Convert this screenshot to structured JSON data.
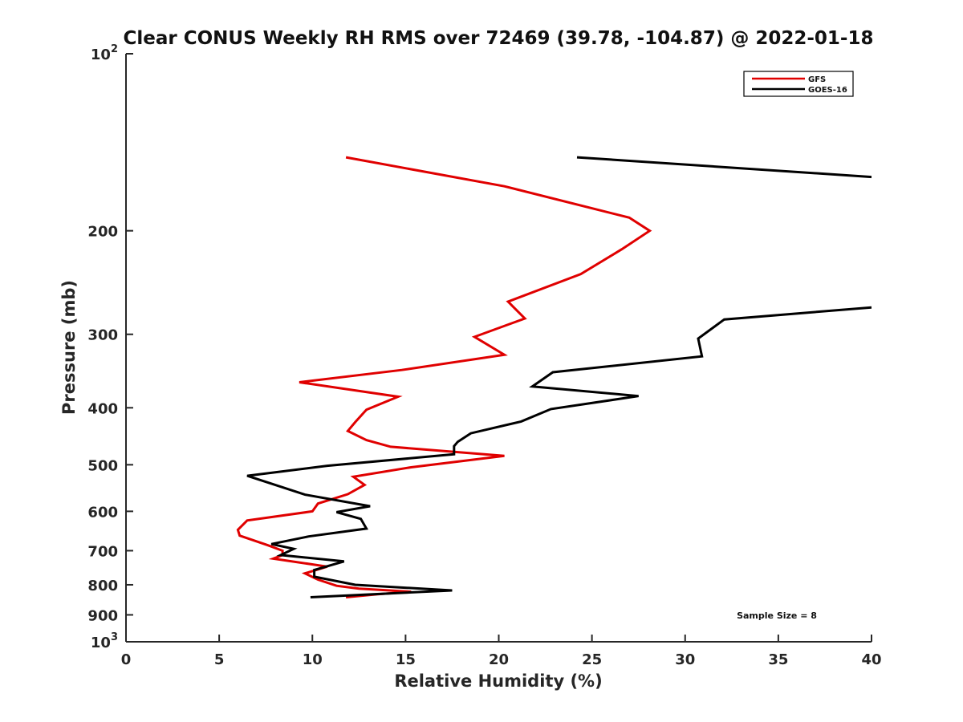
{
  "chart_data": {
    "type": "line",
    "title": "Clear CONUS Weekly RH RMS over 72469 (39.78, -104.87) @ 2022-01-18",
    "xlabel": "Relative Humidity (%)",
    "ylabel": "Pressure (mb)",
    "xlim": [
      0,
      40
    ],
    "ylim": [
      100,
      1000
    ],
    "yscale": "log",
    "y_reversed": true,
    "x_ticks": [
      "0",
      "5",
      "10",
      "15",
      "20",
      "25",
      "30",
      "35",
      "40"
    ],
    "y_ticks": [
      {
        "value": 100,
        "base": "10",
        "exp": "2"
      },
      {
        "value": 200,
        "label": "200"
      },
      {
        "value": 300,
        "label": "300"
      },
      {
        "value": 400,
        "label": "400"
      },
      {
        "value": 500,
        "label": "500"
      },
      {
        "value": 600,
        "label": "600"
      },
      {
        "value": 700,
        "label": "700"
      },
      {
        "value": 800,
        "label": "800"
      },
      {
        "value": 900,
        "label": "900"
      },
      {
        "value": 1000,
        "base": "10",
        "exp": "3"
      }
    ],
    "legend_position": "top-right",
    "annotation": "Sample Size = 8",
    "series": [
      {
        "name": "GFS",
        "color": "#e00000",
        "points": [
          [
            11.8,
            150
          ],
          [
            20.3,
            168
          ],
          [
            27.0,
            190
          ],
          [
            28.1,
            200
          ],
          [
            26.6,
            215
          ],
          [
            24.4,
            237
          ],
          [
            20.5,
            264
          ],
          [
            21.4,
            282
          ],
          [
            18.7,
            303
          ],
          [
            20.3,
            325
          ],
          [
            14.8,
            345
          ],
          [
            9.3,
            362
          ],
          [
            14.6,
            383
          ],
          [
            12.9,
            403
          ],
          [
            12.3,
            423
          ],
          [
            11.9,
            438
          ],
          [
            12.9,
            454
          ],
          [
            14.2,
            466
          ],
          [
            20.3,
            483
          ],
          [
            15.3,
            505
          ],
          [
            12.2,
            524
          ],
          [
            12.8,
            541
          ],
          [
            11.9,
            561
          ],
          [
            10.3,
            582
          ],
          [
            10.0,
            600
          ],
          [
            6.5,
            622
          ],
          [
            6.0,
            645
          ],
          [
            6.1,
            660
          ],
          [
            7.6,
            685
          ],
          [
            8.4,
            700
          ],
          [
            8.4,
            712
          ],
          [
            7.9,
            722
          ],
          [
            10.8,
            745
          ],
          [
            9.6,
            765
          ],
          [
            10.3,
            784
          ],
          [
            11.3,
            803
          ],
          [
            12.5,
            812
          ],
          [
            15.3,
            822
          ],
          [
            13.5,
            830
          ],
          [
            11.8,
            840
          ]
        ]
      },
      {
        "name": "GOES-16",
        "color": "#000000",
        "points": [
          [
            24.2,
            150
          ],
          [
            40.0,
            162
          ],
          [
            null,
            null
          ],
          [
            40.0,
            270
          ],
          [
            32.1,
            283
          ],
          [
            30.7,
            305
          ],
          [
            30.9,
            327
          ],
          [
            22.9,
            348
          ],
          [
            21.8,
            368
          ],
          [
            27.5,
            382
          ],
          [
            22.8,
            402
          ],
          [
            21.2,
            422
          ],
          [
            18.5,
            442
          ],
          [
            17.8,
            457
          ],
          [
            17.6,
            465
          ],
          [
            17.6,
            480
          ],
          [
            10.8,
            502
          ],
          [
            6.5,
            522
          ],
          [
            9.6,
            562
          ],
          [
            13.1,
            588
          ],
          [
            11.3,
            602
          ],
          [
            12.6,
            618
          ],
          [
            12.9,
            642
          ],
          [
            9.8,
            662
          ],
          [
            7.8,
            682
          ],
          [
            9.0,
            695
          ],
          [
            8.3,
            712
          ],
          [
            11.7,
            730
          ],
          [
            10.1,
            755
          ],
          [
            10.1,
            775
          ],
          [
            12.3,
            800
          ],
          [
            17.5,
            818
          ],
          [
            9.9,
            840
          ]
        ]
      }
    ]
  }
}
